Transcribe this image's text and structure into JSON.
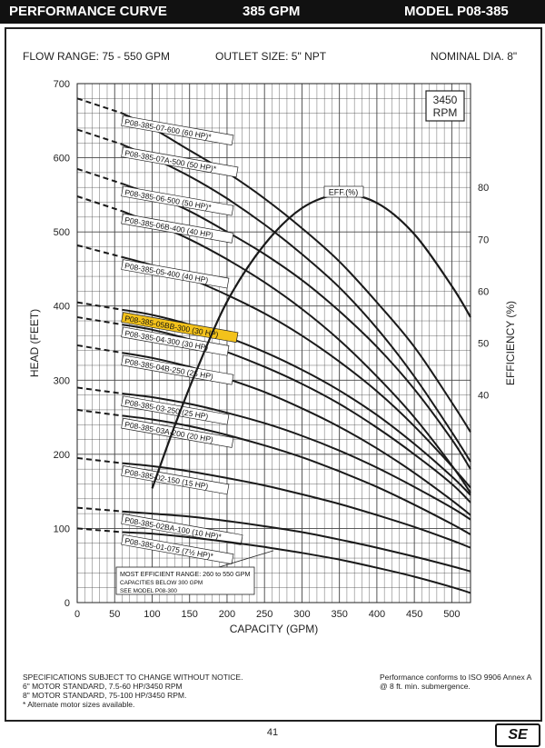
{
  "header": {
    "title": "PERFORMANCE CURVE",
    "gpm": "385 GPM",
    "model": "MODEL  P08-385"
  },
  "specs": {
    "flow_range": "FLOW RANGE: 75 - 550 GPM",
    "outlet": "OUTLET SIZE: 5\" NPT",
    "nominal": "NOMINAL DIA. 8\""
  },
  "rpm": [
    "3450",
    "RPM"
  ],
  "chart_data": {
    "type": "line",
    "xlabel": "CAPACITY (GPM)",
    "ylabel": "HEAD (FEET)",
    "y2label": "EFFICIENCY (%)",
    "xlim": [
      0,
      525
    ],
    "ylim": [
      0,
      700
    ],
    "y2lim": [
      0,
      100
    ],
    "xticks": [
      0,
      50,
      100,
      150,
      200,
      250,
      300,
      350,
      400,
      450,
      500
    ],
    "yticks": [
      0,
      100,
      200,
      300,
      400,
      500,
      600,
      700
    ],
    "y2ticks": [
      40,
      50,
      60,
      70,
      80
    ],
    "grid": true,
    "series": [
      {
        "name": "P08-385-07-600 (60 HP)*",
        "shutoff": 680,
        "points": [
          [
            60,
            660
          ],
          [
            100,
            640
          ],
          [
            150,
            610
          ],
          [
            200,
            580
          ],
          [
            250,
            545
          ],
          [
            300,
            505
          ],
          [
            350,
            460
          ],
          [
            400,
            405
          ],
          [
            450,
            345
          ],
          [
            500,
            270
          ],
          [
            525,
            230
          ]
        ]
      },
      {
        "name": "P08-385-07A-500 (50 HP)*",
        "shutoff": 638,
        "points": [
          [
            60,
            618
          ],
          [
            100,
            600
          ],
          [
            150,
            575
          ],
          [
            200,
            545
          ],
          [
            250,
            510
          ],
          [
            300,
            470
          ],
          [
            350,
            425
          ],
          [
            400,
            370
          ],
          [
            450,
            305
          ],
          [
            500,
            230
          ],
          [
            525,
            190
          ]
        ]
      },
      {
        "name": "P08-385-06-500 (50 HP)*",
        "shutoff": 585,
        "points": [
          [
            60,
            565
          ],
          [
            100,
            550
          ],
          [
            150,
            528
          ],
          [
            200,
            500
          ],
          [
            250,
            470
          ],
          [
            300,
            435
          ],
          [
            350,
            393
          ],
          [
            400,
            345
          ],
          [
            450,
            288
          ],
          [
            500,
            220
          ],
          [
            525,
            180
          ]
        ]
      },
      {
        "name": "P08-385-06B-400 (40 HP)",
        "shutoff": 548,
        "points": [
          [
            60,
            528
          ],
          [
            100,
            512
          ],
          [
            150,
            490
          ],
          [
            200,
            463
          ],
          [
            250,
            432
          ],
          [
            300,
            396
          ],
          [
            350,
            354
          ],
          [
            400,
            305
          ],
          [
            450,
            250
          ],
          [
            500,
            185
          ],
          [
            525,
            148
          ]
        ]
      },
      {
        "name": "P08-385-05-400 (40 HP)",
        "shutoff": 482,
        "points": [
          [
            60,
            466
          ],
          [
            100,
            455
          ],
          [
            150,
            437
          ],
          [
            200,
            415
          ],
          [
            250,
            390
          ],
          [
            300,
            360
          ],
          [
            350,
            325
          ],
          [
            400,
            285
          ],
          [
            450,
            238
          ],
          [
            500,
            184
          ],
          [
            525,
            155
          ]
        ]
      },
      {
        "name": "P08-385-05BB-300 (30 HP)",
        "shutoff": 405,
        "highlight": true,
        "points": [
          [
            60,
            395
          ],
          [
            100,
            388
          ],
          [
            150,
            375
          ],
          [
            200,
            358
          ],
          [
            250,
            338
          ],
          [
            300,
            314
          ],
          [
            350,
            286
          ],
          [
            400,
            253
          ],
          [
            450,
            214
          ],
          [
            500,
            170
          ],
          [
            525,
            145
          ]
        ]
      },
      {
        "name": "P08-385-04-300 (30 HP)",
        "shutoff": 385,
        "points": [
          [
            60,
            375
          ],
          [
            100,
            368
          ],
          [
            150,
            355
          ],
          [
            200,
            338
          ],
          [
            250,
            318
          ],
          [
            300,
            295
          ],
          [
            350,
            268
          ],
          [
            400,
            236
          ],
          [
            450,
            200
          ],
          [
            500,
            160
          ],
          [
            525,
            135
          ]
        ]
      },
      {
        "name": "P08-385-04B-250 (25 HP)",
        "shutoff": 347,
        "points": [
          [
            60,
            337
          ],
          [
            100,
            330
          ],
          [
            150,
            318
          ],
          [
            200,
            302
          ],
          [
            250,
            284
          ],
          [
            300,
            262
          ],
          [
            350,
            237
          ],
          [
            400,
            208
          ],
          [
            450,
            175
          ],
          [
            500,
            138
          ],
          [
            525,
            118
          ]
        ]
      },
      {
        "name": "P08-385-03-250 (25 HP)",
        "shutoff": 290,
        "points": [
          [
            60,
            282
          ],
          [
            100,
            277
          ],
          [
            150,
            268
          ],
          [
            200,
            256
          ],
          [
            250,
            242
          ],
          [
            300,
            225
          ],
          [
            350,
            205
          ],
          [
            400,
            182
          ],
          [
            450,
            156
          ],
          [
            500,
            128
          ],
          [
            525,
            112
          ]
        ]
      },
      {
        "name": "P08-385-03A-200 (20 HP)",
        "shutoff": 260,
        "points": [
          [
            60,
            252
          ],
          [
            100,
            247
          ],
          [
            150,
            238
          ],
          [
            200,
            226
          ],
          [
            250,
            212
          ],
          [
            300,
            196
          ],
          [
            350,
            177
          ],
          [
            400,
            156
          ],
          [
            450,
            132
          ],
          [
            500,
            106
          ],
          [
            525,
            92
          ]
        ]
      },
      {
        "name": "P08-385-02-150 (15 HP)",
        "shutoff": 195,
        "points": [
          [
            60,
            188
          ],
          [
            100,
            184
          ],
          [
            150,
            177
          ],
          [
            200,
            168
          ],
          [
            250,
            158
          ],
          [
            300,
            146
          ],
          [
            350,
            133
          ],
          [
            400,
            118
          ],
          [
            450,
            102
          ],
          [
            500,
            84
          ],
          [
            525,
            74
          ]
        ]
      },
      {
        "name": "P08-385-02BA-100 (10 HP)*",
        "shutoff": 128,
        "points": [
          [
            60,
            123
          ],
          [
            100,
            120
          ],
          [
            150,
            116
          ],
          [
            200,
            110
          ],
          [
            250,
            103
          ],
          [
            300,
            95
          ],
          [
            350,
            85
          ],
          [
            400,
            74
          ],
          [
            450,
            62
          ],
          [
            500,
            49
          ],
          [
            525,
            42
          ]
        ]
      },
      {
        "name": "P08-385-01-075 (7½ HP)*",
        "shutoff": 100,
        "points": [
          [
            60,
            95
          ],
          [
            100,
            93
          ],
          [
            150,
            88
          ],
          [
            200,
            82
          ],
          [
            250,
            75
          ],
          [
            300,
            67
          ],
          [
            350,
            58
          ],
          [
            400,
            47
          ],
          [
            450,
            35
          ],
          [
            500,
            21
          ],
          [
            525,
            13
          ]
        ]
      }
    ],
    "efficiency": {
      "name": "EFF.(%)",
      "points": [
        [
          100,
          22
        ],
        [
          130,
          34
        ],
        [
          160,
          45
        ],
        [
          200,
          58
        ],
        [
          250,
          69
        ],
        [
          300,
          76
        ],
        [
          350,
          78.6
        ],
        [
          400,
          77
        ],
        [
          450,
          71
        ],
        [
          500,
          61
        ],
        [
          525,
          55
        ]
      ]
    },
    "annotation": {
      "lines": [
        "MOST EFFICIENT RANGE: 260 to 550 GPM",
        "CAPACITIES BELOW 300 GPM",
        "SEE  MODEL  P08-300"
      ]
    }
  },
  "footer": {
    "notes": [
      "SPECIFICATIONS SUBJECT TO CHANGE WITHOUT NOTICE.",
      "6\" MOTOR STANDARD, 7.5-60 HP/3450 RPM",
      "8\" MOTOR STANDARD, 75-100 HP/3450 RPM.",
      "* Alternate motor sizes available."
    ],
    "conformance": [
      "Performance conforms to ISO 9906 Annex A",
      "@ 8 ft. min. submergence."
    ],
    "page": "41",
    "logo": "SE"
  },
  "colors": {
    "curve": "#1a1a1a",
    "grid": "#444444",
    "highlight": "#f3c21b",
    "bar": "#111111"
  }
}
